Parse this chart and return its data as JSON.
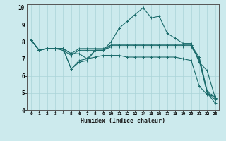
{
  "xlabel": "Humidex (Indice chaleur)",
  "ylabel": "",
  "bg_color": "#cceaed",
  "grid_color": "#aad4d8",
  "line_color": "#1a6b6b",
  "xlim": [
    -0.5,
    23.5
  ],
  "ylim": [
    4,
    10.2
  ],
  "yticks": [
    4,
    5,
    6,
    7,
    8,
    9,
    10
  ],
  "xticks": [
    0,
    1,
    2,
    3,
    4,
    5,
    6,
    7,
    8,
    9,
    10,
    11,
    12,
    13,
    14,
    15,
    16,
    17,
    18,
    19,
    20,
    21,
    22,
    23
  ],
  "lines": [
    {
      "x": [
        0,
        1,
        2,
        3,
        4,
        5,
        6,
        7,
        8,
        9,
        10,
        11,
        12,
        13,
        14,
        15,
        16,
        17,
        18,
        19,
        20,
        21,
        22,
        23
      ],
      "y": [
        8.1,
        7.5,
        7.6,
        7.6,
        7.6,
        6.4,
        6.8,
        6.9,
        7.5,
        7.5,
        8.0,
        8.8,
        9.2,
        9.6,
        10.0,
        9.4,
        9.5,
        8.5,
        8.2,
        7.9,
        7.9,
        6.8,
        6.3,
        4.7
      ]
    },
    {
      "x": [
        0,
        1,
        2,
        3,
        4,
        5,
        6,
        7,
        8,
        9,
        10,
        11,
        12,
        13,
        14,
        15,
        16,
        17,
        18,
        19,
        20,
        21,
        22,
        23
      ],
      "y": [
        8.1,
        7.5,
        7.6,
        7.6,
        7.6,
        6.4,
        6.9,
        7.0,
        7.5,
        7.5,
        7.8,
        7.8,
        7.8,
        7.8,
        7.8,
        7.8,
        7.8,
        7.8,
        7.8,
        7.8,
        7.8,
        6.9,
        5.0,
        4.4
      ]
    },
    {
      "x": [
        0,
        1,
        2,
        3,
        4,
        5,
        6,
        7,
        8,
        9,
        10,
        11,
        12,
        13,
        14,
        15,
        16,
        17,
        18,
        19,
        20,
        21,
        22,
        23
      ],
      "y": [
        8.1,
        7.5,
        7.6,
        7.6,
        7.5,
        7.2,
        7.5,
        7.5,
        7.5,
        7.5,
        7.7,
        7.7,
        7.7,
        7.7,
        7.7,
        7.7,
        7.7,
        7.7,
        7.7,
        7.7,
        7.7,
        7.0,
        5.0,
        4.6
      ]
    },
    {
      "x": [
        0,
        1,
        2,
        3,
        4,
        5,
        6,
        7,
        8,
        9,
        10,
        11,
        12,
        13,
        14,
        15,
        16,
        17,
        18,
        19,
        20,
        21,
        22,
        23
      ],
      "y": [
        8.1,
        7.5,
        7.6,
        7.6,
        7.6,
        7.3,
        7.6,
        7.6,
        7.6,
        7.6,
        7.8,
        7.8,
        7.8,
        7.8,
        7.8,
        7.8,
        7.8,
        7.8,
        7.8,
        7.8,
        7.8,
        7.1,
        5.1,
        4.7
      ]
    },
    {
      "x": [
        0,
        1,
        2,
        3,
        4,
        5,
        6,
        7,
        8,
        9,
        10,
        11,
        12,
        13,
        14,
        15,
        16,
        17,
        18,
        19,
        20,
        21,
        22,
        23
      ],
      "y": [
        8.1,
        7.5,
        7.6,
        7.6,
        7.6,
        7.3,
        7.3,
        7.0,
        7.1,
        7.2,
        7.2,
        7.2,
        7.1,
        7.1,
        7.1,
        7.1,
        7.1,
        7.1,
        7.1,
        7.0,
        6.9,
        5.4,
        4.9,
        4.8
      ]
    }
  ]
}
